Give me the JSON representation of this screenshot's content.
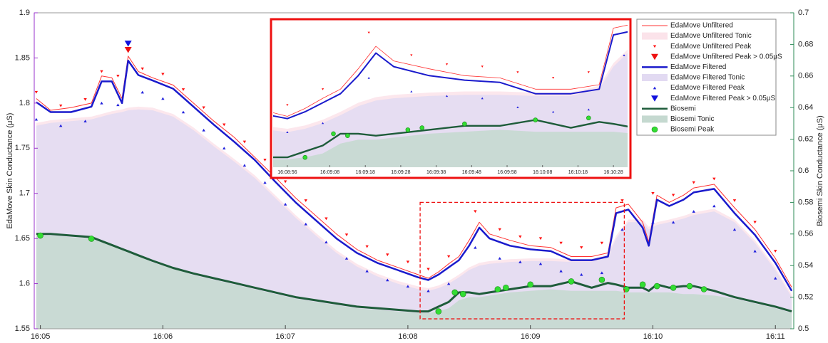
{
  "chart_data": {
    "type": "line",
    "y_label": "EdaMove Skin Conductance (μS)",
    "y2_label": "Biosemi Skin Conductance (μS)",
    "y_color": "#9933cc",
    "y2_color": "#2e8b57",
    "legend": "upper right",
    "x": [
      "16:04:58",
      "16:05:05",
      "16:05:15",
      "16:05:25",
      "16:05:30",
      "16:05:35",
      "16:05:40",
      "16:05:43",
      "16:05:48",
      "16:05:55",
      "16:06:05",
      "16:06:15",
      "16:06:25",
      "16:06:35",
      "16:06:45",
      "16:06:55",
      "16:07:05",
      "16:07:15",
      "16:07:25",
      "16:07:35",
      "16:07:45",
      "16:07:55",
      "16:08:05",
      "16:08:10",
      "16:08:15",
      "16:08:20",
      "16:08:25",
      "16:08:30",
      "16:08:35",
      "16:08:40",
      "16:08:50",
      "16:09:00",
      "16:09:10",
      "16:09:20",
      "16:09:30",
      "16:09:38",
      "16:09:42",
      "16:09:48",
      "16:09:55",
      "16:09:58",
      "16:10:02",
      "16:10:08",
      "16:10:15",
      "16:10:20",
      "16:10:30",
      "16:10:40",
      "16:10:50",
      "16:11:00",
      "16:11:08"
    ],
    "xlim": [
      "16:04:57",
      "16:11:09"
    ],
    "xticks": [
      "16:05",
      "16:06",
      "16:07",
      "16:08",
      "16:09",
      "16:10",
      "16:11"
    ],
    "ylim": [
      1.55,
      1.9
    ],
    "yticks": [
      1.55,
      1.6,
      1.65,
      1.7,
      1.75,
      1.8,
      1.85,
      1.9
    ],
    "y2lim": [
      0.5,
      0.7
    ],
    "y2ticks": [
      0.5,
      0.52,
      0.54,
      0.56,
      0.58,
      0.6,
      0.62,
      0.64,
      0.66,
      0.68,
      0.7
    ],
    "series": [
      {
        "name": "EdaMove Unfiltered",
        "color": "#ff3333",
        "mark": "line",
        "values": [
          1.805,
          1.792,
          1.795,
          1.8,
          1.83,
          1.828,
          1.805,
          1.852,
          1.835,
          1.828,
          1.82,
          1.8,
          1.78,
          1.762,
          1.74,
          1.718,
          1.695,
          1.675,
          1.655,
          1.638,
          1.626,
          1.618,
          1.61,
          1.606,
          1.613,
          1.622,
          1.63,
          1.648,
          1.668,
          1.655,
          1.648,
          1.642,
          1.64,
          1.63,
          1.63,
          1.634,
          1.684,
          1.688,
          1.668,
          1.646,
          1.698,
          1.69,
          1.698,
          1.706,
          1.71,
          1.684,
          1.66,
          1.628,
          1.596
        ]
      },
      {
        "name": "EdaMove Unfiltered Tonic",
        "color": "#fbe3ea",
        "mark": "area",
        "values": [
          1.778,
          1.781,
          1.783,
          1.785,
          1.788,
          1.791,
          1.793,
          1.795,
          1.796,
          1.795,
          1.788,
          1.773,
          1.755,
          1.738,
          1.72,
          1.698,
          1.676,
          1.656,
          1.637,
          1.622,
          1.611,
          1.603,
          1.597,
          1.595,
          1.598,
          1.603,
          1.61,
          1.618,
          1.623,
          1.625,
          1.627,
          1.628,
          1.628,
          1.627,
          1.627,
          1.633,
          1.653,
          1.671,
          1.671,
          1.663,
          1.668,
          1.671,
          1.675,
          1.679,
          1.683,
          1.671,
          1.648,
          1.618,
          1.588
        ]
      },
      {
        "name": "EdaMove Unfiltered Peak",
        "color": "#ff1111",
        "mark": "triangle-down",
        "x": [
          "16:04:58",
          "16:05:10",
          "16:05:22",
          "16:05:30",
          "16:05:38",
          "16:05:50",
          "16:06:00",
          "16:06:10",
          "16:06:20",
          "16:06:30",
          "16:06:40",
          "16:06:50",
          "16:07:00",
          "16:07:10",
          "16:07:20",
          "16:07:30",
          "16:07:40",
          "16:07:50",
          "16:08:00",
          "16:08:10",
          "16:08:20",
          "16:08:33",
          "16:08:45",
          "16:08:55",
          "16:09:05",
          "16:09:15",
          "16:09:25",
          "16:09:35",
          "16:09:45",
          "16:10:00",
          "16:10:10",
          "16:10:20",
          "16:10:30",
          "16:10:40",
          "16:10:50",
          "16:11:00"
        ],
        "values": [
          1.812,
          1.797,
          1.804,
          1.835,
          1.83,
          1.838,
          1.832,
          1.815,
          1.795,
          1.776,
          1.757,
          1.737,
          1.713,
          1.692,
          1.672,
          1.654,
          1.641,
          1.632,
          1.624,
          1.616,
          1.63,
          1.68,
          1.66,
          1.652,
          1.65,
          1.645,
          1.64,
          1.645,
          1.692,
          1.7,
          1.698,
          1.712,
          1.716,
          1.692,
          1.668,
          1.636
        ]
      },
      {
        "name": "EdaMove Unfiltered Peak > 0.05μS",
        "color": "#ee1111",
        "mark": "triangle-down-big",
        "x": [
          "16:05:43"
        ],
        "values": [
          1.859
        ]
      },
      {
        "name": "EdaMove Filtered",
        "color": "#1a1acc",
        "mark": "line",
        "values": [
          1.801,
          1.79,
          1.79,
          1.796,
          1.824,
          1.824,
          1.8,
          1.847,
          1.831,
          1.825,
          1.816,
          1.796,
          1.776,
          1.757,
          1.737,
          1.713,
          1.69,
          1.67,
          1.65,
          1.634,
          1.623,
          1.615,
          1.607,
          1.604,
          1.61,
          1.618,
          1.626,
          1.642,
          1.662,
          1.65,
          1.642,
          1.638,
          1.636,
          1.626,
          1.626,
          1.63,
          1.678,
          1.682,
          1.662,
          1.642,
          1.693,
          1.686,
          1.693,
          1.701,
          1.705,
          1.678,
          1.654,
          1.623,
          1.592
        ]
      },
      {
        "name": "EdaMove Filtered Tonic",
        "color": "#e2daf2",
        "mark": "area",
        "values": [
          1.775,
          1.778,
          1.78,
          1.782,
          1.785,
          1.788,
          1.79,
          1.792,
          1.793,
          1.792,
          1.785,
          1.77,
          1.752,
          1.735,
          1.717,
          1.695,
          1.673,
          1.653,
          1.634,
          1.619,
          1.608,
          1.6,
          1.594,
          1.592,
          1.595,
          1.6,
          1.607,
          1.615,
          1.62,
          1.622,
          1.624,
          1.625,
          1.625,
          1.624,
          1.624,
          1.63,
          1.65,
          1.668,
          1.668,
          1.66,
          1.665,
          1.668,
          1.672,
          1.676,
          1.68,
          1.668,
          1.645,
          1.615,
          1.585
        ]
      },
      {
        "name": "EdaMove Filtered Peak",
        "color": "#2222dd",
        "mark": "triangle-up",
        "x": [
          "16:04:58",
          "16:05:10",
          "16:05:22",
          "16:05:30",
          "16:05:38",
          "16:05:50",
          "16:06:00",
          "16:06:10",
          "16:06:20",
          "16:06:30",
          "16:06:40",
          "16:06:50",
          "16:07:00",
          "16:07:10",
          "16:07:20",
          "16:07:30",
          "16:07:40",
          "16:07:50",
          "16:08:00",
          "16:08:10",
          "16:08:20",
          "16:08:33",
          "16:08:45",
          "16:08:55",
          "16:09:05",
          "16:09:15",
          "16:09:25",
          "16:09:35",
          "16:09:45",
          "16:10:00",
          "16:10:10",
          "16:10:20",
          "16:10:30",
          "16:10:40",
          "16:10:50",
          "16:11:00"
        ],
        "values": [
          1.782,
          1.775,
          1.78,
          1.8,
          1.798,
          1.812,
          1.805,
          1.79,
          1.77,
          1.75,
          1.731,
          1.712,
          1.688,
          1.666,
          1.646,
          1.628,
          1.614,
          1.604,
          1.597,
          1.592,
          1.6,
          1.64,
          1.628,
          1.624,
          1.622,
          1.614,
          1.61,
          1.612,
          1.66,
          1.668,
          1.668,
          1.68,
          1.686,
          1.66,
          1.636,
          1.606
        ]
      },
      {
        "name": "EdaMove Filtered Peak > 0.05μS",
        "color": "#1111dd",
        "mark": "triangle-down-big",
        "x": [
          "16:05:43"
        ],
        "values": [
          1.866
        ]
      },
      {
        "name": "Biosemi",
        "color": "#1e5c3a",
        "mark": "line",
        "axis": "y2",
        "values": [
          0.56,
          0.56,
          0.559,
          0.558,
          0.5555,
          0.553,
          0.5505,
          0.549,
          0.5465,
          0.543,
          0.5385,
          0.535,
          0.532,
          0.529,
          0.526,
          0.523,
          0.52,
          0.518,
          0.516,
          0.514,
          0.513,
          0.512,
          0.511,
          0.511,
          0.514,
          0.517,
          0.523,
          0.523,
          0.522,
          0.523,
          0.525,
          0.527,
          0.527,
          0.53,
          0.526,
          0.529,
          0.528,
          0.526,
          0.526,
          0.524,
          0.528,
          0.526,
          0.527,
          0.527,
          0.524,
          0.52,
          0.517,
          0.514,
          0.511
        ]
      },
      {
        "name": "Biosemi Tonic",
        "color": "#c5d9d0",
        "mark": "area",
        "axis": "y2",
        "values": [
          0.559,
          0.559,
          0.558,
          0.557,
          0.555,
          0.553,
          0.55,
          0.548,
          0.546,
          0.542,
          0.538,
          0.534,
          0.531,
          0.528,
          0.525,
          0.522,
          0.519,
          0.517,
          0.515,
          0.513,
          0.512,
          0.511,
          0.51,
          0.51,
          0.511,
          0.513,
          0.518,
          0.52,
          0.52,
          0.521,
          0.523,
          0.524,
          0.525,
          0.524,
          0.524,
          0.524,
          0.524,
          0.523,
          0.523,
          0.523,
          0.523,
          0.523,
          0.522,
          0.522,
          0.521,
          0.519,
          0.516,
          0.513,
          0.51
        ]
      },
      {
        "name": "Biosemi Peak",
        "color": "#33dd33",
        "mark": "circle",
        "axis": "y2",
        "x": [
          "16:05:00",
          "16:05:25",
          "16:08:15",
          "16:08:23",
          "16:08:27",
          "16:08:44",
          "16:08:48",
          "16:09:00",
          "16:09:20",
          "16:09:35",
          "16:09:47",
          "16:09:55",
          "16:10:02",
          "16:10:10",
          "16:10:18",
          "16:10:25"
        ],
        "values": [
          0.559,
          0.557,
          0.511,
          0.523,
          0.522,
          0.525,
          0.526,
          0.528,
          0.53,
          0.531,
          0.525,
          0.528,
          0.527,
          0.526,
          0.527,
          0.525
        ]
      }
    ],
    "inset": {
      "color": "#ee1111",
      "xlim": [
        "16:08:06",
        "16:09:46"
      ],
      "ylim": [
        1.561,
        1.69
      ],
      "y2lim": [
        0.506,
        0.58
      ],
      "xticks": [
        {
          "value": "16:08:10",
          "label": "16:08:56"
        },
        {
          "value": "16:08:22",
          "label": "16:09:08"
        },
        {
          "value": "16:08:32",
          "label": "16:09:18"
        },
        {
          "value": "16:08:42",
          "label": "16:09:28"
        },
        {
          "value": "16:08:52",
          "label": "16:09:38"
        },
        {
          "value": "16:09:02",
          "label": "16:09:48"
        },
        {
          "value": "16:09:12",
          "label": "16:09:58"
        },
        {
          "value": "16:09:22",
          "label": "16:10:08"
        },
        {
          "value": "16:09:32",
          "label": "16:10:18"
        },
        {
          "value": "16:09:42",
          "label": "16:10:28"
        }
      ]
    }
  }
}
